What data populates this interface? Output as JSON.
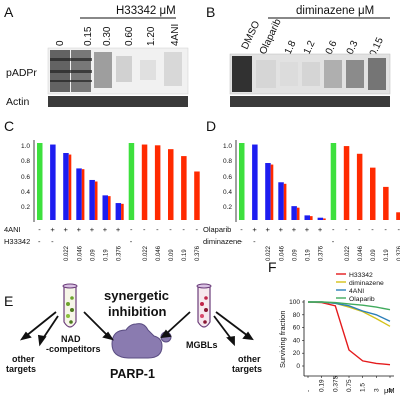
{
  "panel_labels": [
    "A",
    "B",
    "C",
    "D",
    "E",
    "F"
  ],
  "panelA": {
    "group_label": "H33342 μM",
    "lanes": [
      "0",
      "0.15",
      "0.30",
      "0.60",
      "1.20",
      "4ANI"
    ],
    "row_labels": [
      "pADPr",
      "Actin"
    ]
  },
  "panelB": {
    "group_label": "diminazene μM",
    "lanes": [
      "DMSO",
      "Olaparib",
      "1.8",
      "1.2",
      "0.6",
      "0.3",
      "0.15"
    ]
  },
  "panelC": {
    "y_ticks": [
      "0.2",
      "0.4",
      "0.6",
      "0.8",
      "1.0"
    ],
    "row1_label": "4ANI",
    "row2_label": "H33342",
    "row1_marks": [
      "-",
      "+",
      "+",
      "+",
      "+",
      "+",
      "+",
      "-",
      "-",
      "-",
      "-",
      "-",
      "-"
    ],
    "row2_marks": [
      "-",
      "-",
      "0.022",
      "0.046",
      "0.09",
      "0.19",
      "0.376",
      "-",
      "0.022",
      "0.046",
      "0.09",
      "0.19",
      "0.376"
    ]
  },
  "panelD": {
    "y_ticks": [
      "0.2",
      "0.4",
      "0.6",
      "0.8",
      "1.0"
    ],
    "row1_label": "Olaparib",
    "row2_label": "diminazene",
    "row1_marks": [
      "-",
      "+",
      "+",
      "+",
      "+",
      "+",
      "+",
      "-",
      "-",
      "-",
      "-",
      "-",
      "-"
    ],
    "row2_marks": [
      "-",
      "-",
      "0.022",
      "0.046",
      "0.09",
      "0.19",
      "0.376",
      "-",
      "0.022",
      "0.046",
      "0.09",
      "0.19",
      "0.376"
    ]
  },
  "panelE": {
    "title_line1": "synergetic",
    "title_line2": "inhibition",
    "left_label_line1": "NAD",
    "left_label_line2": "-competitors",
    "right_label": "MGBLs",
    "center_label": "PARP-1",
    "other_left_line1": "other",
    "other_left_line2": "targets",
    "other_right_line1": "other",
    "other_right_line2": "targets"
  },
  "panelF": {
    "ylabel": "Surviving fraction",
    "x_unit": "μM",
    "y_ticks": [
      "0",
      "20",
      "40",
      "60",
      "80",
      "100"
    ],
    "x_ticks": [
      "-",
      "0.19",
      "0.375",
      "0.75",
      "1.5",
      "3",
      "6"
    ],
    "legend": [
      {
        "name": "H33342",
        "color": "#e41a1c"
      },
      {
        "name": "diminazene",
        "color": "#d4c21a"
      },
      {
        "name": "4ANI",
        "color": "#2c7fb8"
      },
      {
        "name": "Olaparib",
        "color": "#41ab5d"
      }
    ]
  },
  "colors": {
    "green": "#3de03d",
    "blue": "#1d1df0",
    "red": "#ff2a00",
    "edge": "#2a2a88"
  },
  "chart_data": [
    {
      "type": "bar",
      "panel": "C",
      "ylim": [
        0,
        1.0
      ],
      "categories": [
        "ctrl",
        "4ANI",
        "4ANI+0.022",
        "4ANI+0.046",
        "4ANI+0.09",
        "4ANI+0.19",
        "4ANI+0.376",
        "ctrl",
        "0.022",
        "0.046",
        "0.09",
        "0.19",
        "0.376"
      ],
      "values": [
        1.0,
        0.98,
        0.87,
        0.67,
        0.52,
        0.32,
        0.22,
        1.0,
        0.98,
        0.97,
        0.92,
        0.83,
        0.63
      ],
      "bar_colors": [
        "green",
        "blue",
        "blue",
        "blue",
        "blue",
        "blue",
        "blue",
        "green",
        "red",
        "red",
        "red",
        "red",
        "red"
      ],
      "overlay_red": [
        null,
        null,
        0.85,
        0.66,
        0.5,
        0.31,
        0.21,
        null,
        null,
        null,
        null,
        null,
        null
      ]
    },
    {
      "type": "bar",
      "panel": "D",
      "ylim": [
        0,
        1.0
      ],
      "categories": [
        "ctrl",
        "Olaparib",
        "Ola+0.022",
        "Ola+0.046",
        "Ola+0.09",
        "Ola+0.19",
        "Ola+0.376",
        "ctrl",
        "0.022",
        "0.046",
        "0.09",
        "0.19",
        "0.376"
      ],
      "values": [
        1.0,
        0.98,
        0.74,
        0.49,
        0.18,
        0.06,
        0.03,
        1.0,
        0.96,
        0.86,
        0.68,
        0.43,
        0.1
      ],
      "bar_colors": [
        "green",
        "blue",
        "blue",
        "blue",
        "blue",
        "blue",
        "blue",
        "green",
        "red",
        "red",
        "red",
        "red",
        "red"
      ],
      "overlay_red": [
        null,
        null,
        0.72,
        0.47,
        0.16,
        0.05,
        0.02,
        null,
        null,
        null,
        null,
        null,
        null
      ]
    },
    {
      "type": "line",
      "panel": "F",
      "x": [
        "-",
        "0.19",
        "0.375",
        "0.75",
        "1.5",
        "3",
        "6"
      ],
      "ylim": [
        0,
        100
      ],
      "ylabel": "Surviving fraction",
      "series": [
        {
          "name": "H33342",
          "values": [
            100,
            99,
            94,
            25,
            8,
            4,
            2
          ]
        },
        {
          "name": "diminazene",
          "values": [
            100,
            100,
            98,
            92,
            85,
            74,
            62
          ]
        },
        {
          "name": "4ANI",
          "values": [
            100,
            100,
            98,
            94,
            86,
            80,
            70
          ]
        },
        {
          "name": "Olaparib",
          "values": [
            100,
            100,
            99,
            97,
            95,
            92,
            88
          ]
        }
      ]
    }
  ]
}
